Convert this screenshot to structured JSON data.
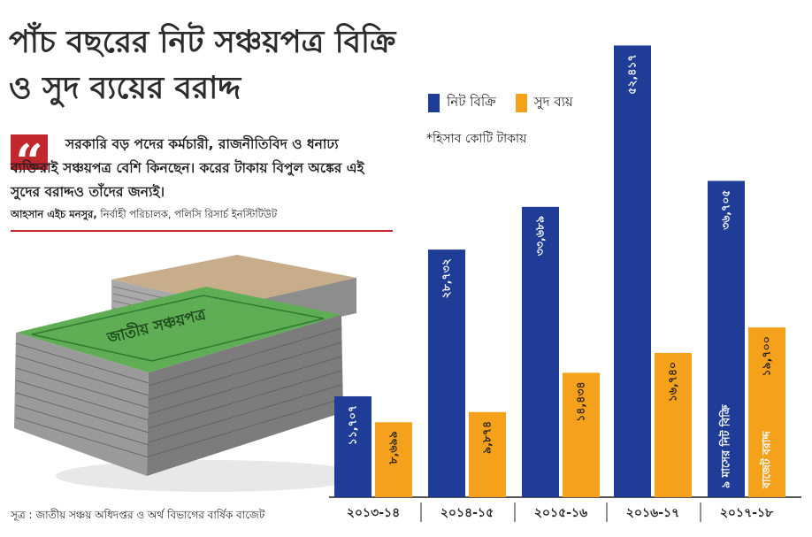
{
  "title": "পাঁচ বছরের নিট সঞ্চয়পত্র বিক্রি ও সুদ ব্যয়ের বরাদ্দ",
  "quote": {
    "text": "সরকারি বড় পদের কর্মচারী, রাজনীতিবিদ ও ধনাঢ্য ব্যক্তিরাই সঞ্চয়পত্র বেশি কিনছেন। করের টাকায় বিপুল অঙ্কের এই সুদের বরাদ্দও তাঁদের জন্যই।",
    "author_name": "আহসান এইচ মনসুর,",
    "author_role": " নির্বাহী পরিচালক, পলিসি রিসার্চ ইনস্টিটিউট"
  },
  "illustration": {
    "stack_front_label": "জাতীয় সঞ্চয়পত্র"
  },
  "source": "সূত্র : জাতীয় সঞ্চয় অধিদপ্তর ও অর্থ বিভাগের বার্ষিক বাজেট",
  "colors": {
    "net_sales": "#1f3c96",
    "interest": "#f5a11c",
    "accent_red": "#c2272d"
  },
  "chart_data": {
    "type": "bar",
    "categories": [
      "২০১৩-১৪",
      "২০১৪-১৫",
      "২০১৫-১৬",
      "২০১৬-১৭",
      "২০১৭-১৮"
    ],
    "series": [
      {
        "name": "নিট বিক্রি",
        "values": [
          11707,
          28732,
          33689,
          52417,
          36705
        ],
        "labels": [
          "১১,৭০৭",
          "২৮,৭৩২",
          "৩৩,৬৮৯",
          "৫২,৪১৭",
          "৩৬,৭০৫"
        ]
      },
      {
        "name": "সুদ ব্যয়",
        "values": [
          8699,
          9874,
          14434,
          16740,
          19700
        ],
        "labels": [
          "৮,৬৯৯",
          "৯,৮৭৪",
          "১৪,৪৩৪",
          "১৬,৭৪০",
          "১৯,৭০০"
        ]
      }
    ],
    "annotations": [
      {
        "series": 0,
        "category": 4,
        "text": "৯ মাসের নিট বিক্রি"
      },
      {
        "series": 1,
        "category": 4,
        "text": "বাজেট বরাদ্দ"
      }
    ],
    "note": "*হিসাব কোটি টাকায়",
    "ylim": [
      0,
      54000
    ],
    "grid": false,
    "legend_position": "top-left"
  }
}
